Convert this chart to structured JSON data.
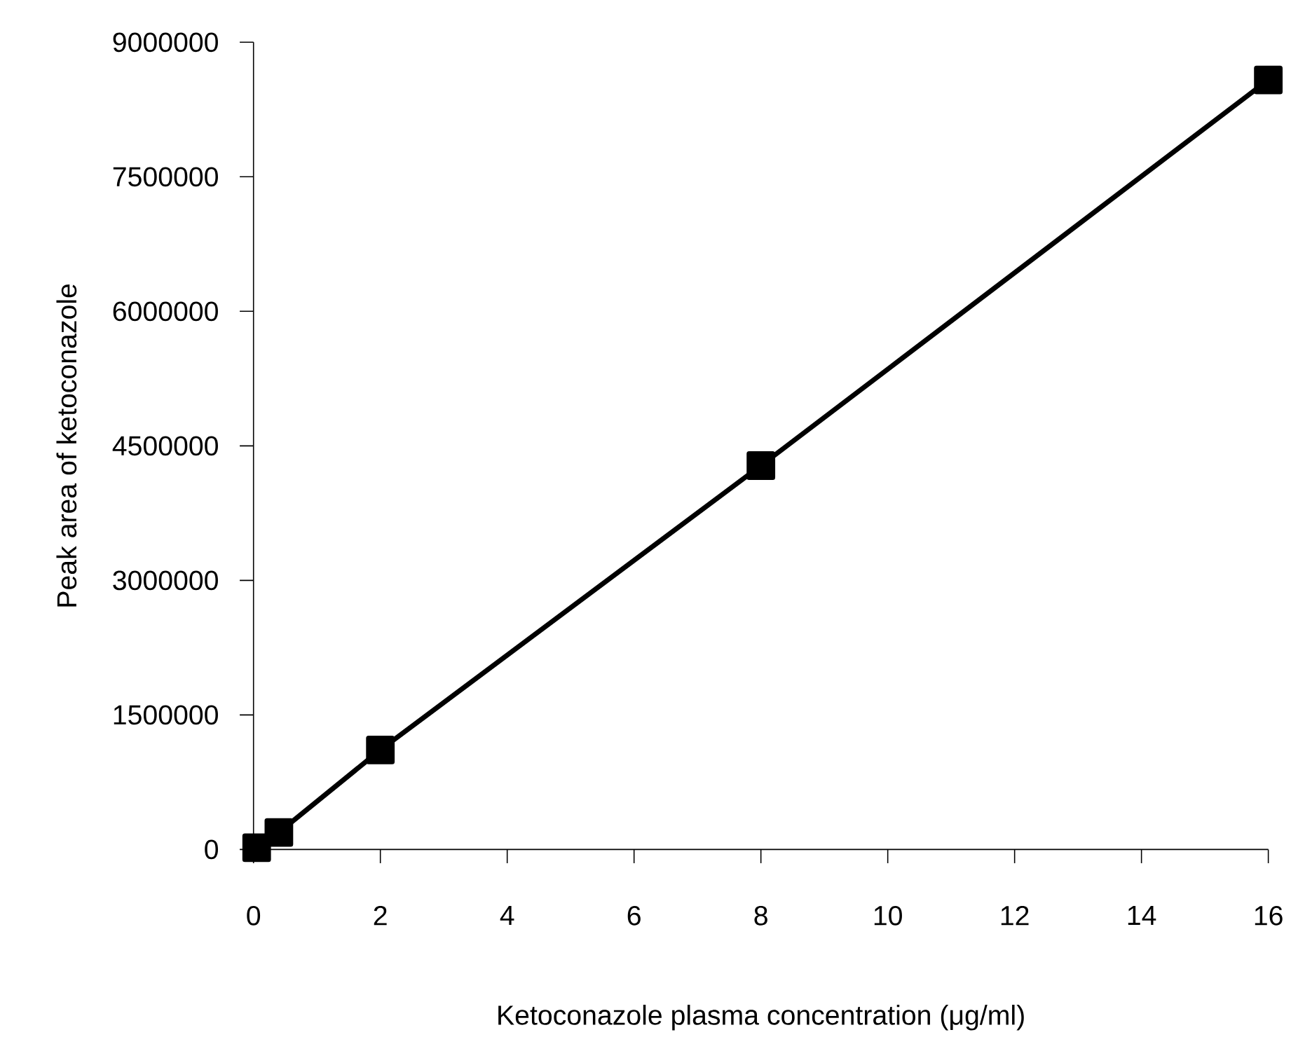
{
  "chart_data": {
    "type": "line",
    "xlabel": "Ketoconazole plasma concentration (μg/ml)",
    "ylabel": "Peak area of ketoconazole",
    "x": [
      0.05,
      0.4,
      2,
      8,
      16
    ],
    "values": [
      20000,
      190000,
      1110000,
      4280000,
      8580000
    ],
    "color": "#000000",
    "marker": "square",
    "line_style": "solid",
    "grid": false,
    "xlim": [
      0,
      16
    ],
    "xticks": [
      0,
      2,
      4,
      6,
      8,
      10,
      12,
      14,
      16
    ],
    "ylim": [
      0,
      9000000
    ],
    "yticks": [
      0,
      1500000,
      3000000,
      4500000,
      6000000,
      7500000,
      9000000
    ]
  }
}
